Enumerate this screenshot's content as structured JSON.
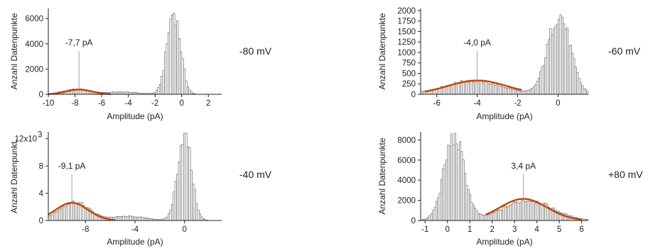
{
  "chart_data": [
    {
      "type": "bar",
      "subtype": "histogram",
      "xlabel": "Amplitude (pA)",
      "ylabel": "Anzahl Datenpunkte",
      "voltage": "-80 mV",
      "annotation": {
        "text": "-7,7 pA",
        "x": -7.7
      },
      "xlim": [
        -10,
        3
      ],
      "ylim": [
        0,
        6800
      ],
      "xticks": [
        -10,
        -8,
        -6,
        -4,
        -2,
        0,
        2
      ],
      "xtick_labels": [
        "-10",
        "-8",
        "-6",
        "-4",
        "-2",
        "0",
        "2"
      ],
      "yticks": [
        0,
        2000,
        4000,
        6000
      ],
      "ytick_labels": [
        "0",
        "2000",
        "4000",
        "6000"
      ],
      "bar_color": "#ffffff",
      "fit_color": "#c0440a",
      "peaks": [
        {
          "center": -7.9,
          "height": 400,
          "sigma": 1.0
        },
        {
          "center": -4.5,
          "height": 180,
          "sigma": 1.3
        },
        {
          "center": -0.6,
          "height": 6500,
          "sigma": 0.5
        }
      ],
      "fit": {
        "center": -7.7,
        "height": 380,
        "sigma": 0.95,
        "from": -10,
        "to": -5.3
      }
    },
    {
      "type": "bar",
      "subtype": "histogram",
      "xlabel": "Amplitude (pA)",
      "ylabel": "Anzahl Datenpunkte",
      "voltage": "-60 mV",
      "annotation": {
        "text": "-4,0 pA",
        "x": -4.0
      },
      "xlim": [
        -6.8,
        1.5
      ],
      "ylim": [
        0,
        2050
      ],
      "xticks": [
        -6,
        -4,
        -2,
        0
      ],
      "xtick_labels": [
        "-6",
        "-4",
        "-2",
        "0"
      ],
      "yticks": [
        0,
        250,
        500,
        750,
        1000,
        1250,
        1500,
        1750,
        2000
      ],
      "ytick_labels": [
        "0",
        "250",
        "500",
        "750",
        "1000",
        "1250",
        "1500",
        "1750",
        "2000"
      ],
      "bar_color": "#ffffff",
      "fit_color": "#c0440a",
      "peaks": [
        {
          "center": -4.2,
          "height": 320,
          "sigma": 1.4
        },
        {
          "center": 0.05,
          "height": 1900,
          "sigma": 0.55
        }
      ],
      "fit": {
        "center": -4.0,
        "height": 330,
        "sigma": 1.45,
        "from": -6.6,
        "to": -1.8
      }
    },
    {
      "type": "bar",
      "subtype": "histogram",
      "xlabel": "Amplitude (pA)",
      "ylabel": "Anzahl Datenpunkt.",
      "yscale_label": "12x10",
      "yscale_exponent": "3",
      "voltage": "-40 mV",
      "annotation": {
        "text": "-9,1 pA",
        "x": -9.1
      },
      "xlim": [
        -11,
        3
      ],
      "ylim": [
        0,
        13000
      ],
      "xticks": [
        -8,
        -4,
        0
      ],
      "xtick_labels": [
        "-8",
        "-4",
        "0"
      ],
      "yticks": [
        0,
        4000,
        8000,
        12000
      ],
      "ytick_labels": [
        "0",
        "4",
        "8",
        ""
      ],
      "bar_color": "#ffffff",
      "fit_color": "#c0440a",
      "peaks": [
        {
          "center": -8.9,
          "height": 2700,
          "sigma": 1.2
        },
        {
          "center": -4.5,
          "height": 600,
          "sigma": 1.4
        },
        {
          "center": 0.0,
          "height": 12800,
          "sigma": 0.55
        }
      ],
      "fit": {
        "center": -9.1,
        "height": 2600,
        "sigma": 1.3,
        "from": -11,
        "to": -5.6
      }
    },
    {
      "type": "bar",
      "subtype": "histogram",
      "xlabel": "Amplitude (pA)",
      "ylabel": "Anzahl Datenpunkte",
      "voltage": "+80 mV",
      "annotation": {
        "text": "3,4 pA",
        "x": 3.4
      },
      "xlim": [
        -1.2,
        6.3
      ],
      "ylim": [
        0,
        8800
      ],
      "xticks": [
        -1,
        0,
        1,
        2,
        3,
        4,
        5,
        6
      ],
      "xtick_labels": [
        "-1",
        "0",
        "1",
        "2",
        "3",
        "4",
        "5",
        "6"
      ],
      "yticks": [
        0,
        2000,
        4000,
        6000,
        8000
      ],
      "ytick_labels": [
        "0",
        "2000",
        "4000",
        "6000",
        "8000"
      ],
      "bar_color": "#ffffff",
      "fit_color": "#c0440a",
      "peaks": [
        {
          "center": 0.3,
          "height": 8300,
          "sigma": 0.45
        },
        {
          "center": 3.6,
          "height": 2000,
          "sigma": 1.1
        }
      ],
      "fit": {
        "center": 3.4,
        "height": 2150,
        "sigma": 1.05,
        "from": 1.7,
        "to": 6.0
      }
    }
  ]
}
